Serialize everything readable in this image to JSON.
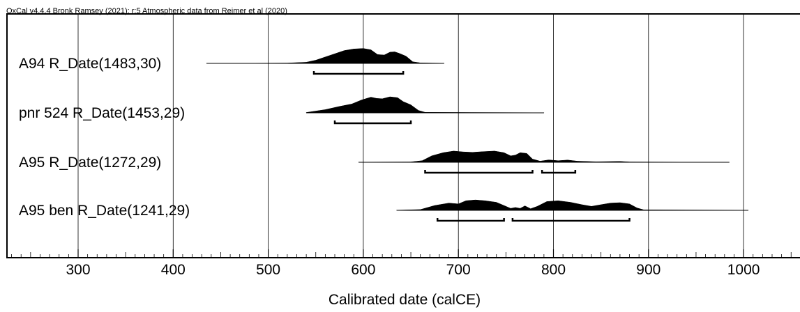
{
  "header": "OxCal v4.4.4 Bronk Ramsey (2021); r:5 Atmospheric data from Reimer et al (2020)",
  "chart_data": {
    "type": "area",
    "xlabel": "Calibrated date (calCE)",
    "xlim": [
      230,
      1090
    ],
    "xticks": [
      300,
      400,
      500,
      600,
      700,
      800,
      900,
      1000
    ],
    "grid": true,
    "samples": [
      {
        "label": "A94 R_Date(1483,30)",
        "range": [
          435,
          685
        ],
        "ranges_95": [
          [
            548,
            642
          ]
        ],
        "density": [
          [
            435,
            0.01
          ],
          [
            480,
            0.01
          ],
          [
            520,
            0.02
          ],
          [
            540,
            0.07
          ],
          [
            550,
            0.2
          ],
          [
            560,
            0.4
          ],
          [
            570,
            0.6
          ],
          [
            580,
            0.8
          ],
          [
            590,
            0.9
          ],
          [
            600,
            0.93
          ],
          [
            608,
            0.85
          ],
          [
            615,
            0.55
          ],
          [
            622,
            0.52
          ],
          [
            628,
            0.7
          ],
          [
            633,
            0.72
          ],
          [
            638,
            0.62
          ],
          [
            645,
            0.45
          ],
          [
            652,
            0.1
          ],
          [
            660,
            0.03
          ],
          [
            685,
            0.01
          ]
        ]
      },
      {
        "label": "pnr 524 R_Date(1453,29)",
        "range": [
          540,
          790
        ],
        "ranges_95": [
          [
            570,
            650
          ]
        ],
        "density": [
          [
            540,
            0.02
          ],
          [
            560,
            0.2
          ],
          [
            575,
            0.4
          ],
          [
            588,
            0.55
          ],
          [
            598,
            0.8
          ],
          [
            608,
            0.98
          ],
          [
            614,
            0.9
          ],
          [
            620,
            0.88
          ],
          [
            628,
            1.0
          ],
          [
            636,
            0.95
          ],
          [
            642,
            0.7
          ],
          [
            650,
            0.5
          ],
          [
            658,
            0.15
          ],
          [
            665,
            0.03
          ],
          [
            790,
            0.01
          ]
        ]
      },
      {
        "label": "A95 R_Date(1272,29)",
        "range": [
          595,
          985
        ],
        "ranges_95": [
          [
            665,
            778
          ],
          [
            788,
            823
          ]
        ],
        "density": [
          [
            595,
            0.01
          ],
          [
            650,
            0.02
          ],
          [
            662,
            0.1
          ],
          [
            672,
            0.4
          ],
          [
            684,
            0.6
          ],
          [
            695,
            0.7
          ],
          [
            705,
            0.65
          ],
          [
            715,
            0.62
          ],
          [
            725,
            0.66
          ],
          [
            738,
            0.7
          ],
          [
            748,
            0.6
          ],
          [
            755,
            0.4
          ],
          [
            760,
            0.45
          ],
          [
            765,
            0.6
          ],
          [
            772,
            0.55
          ],
          [
            778,
            0.2
          ],
          [
            786,
            0.07
          ],
          [
            795,
            0.15
          ],
          [
            805,
            0.1
          ],
          [
            815,
            0.14
          ],
          [
            825,
            0.07
          ],
          [
            845,
            0.03
          ],
          [
            870,
            0.05
          ],
          [
            880,
            0.02
          ],
          [
            985,
            0.0
          ]
        ]
      },
      {
        "label": "A95 ben R_Date(1241,29)",
        "range": [
          635,
          1005
        ],
        "ranges_95": [
          [
            678,
            748
          ],
          [
            757,
            880
          ]
        ],
        "density": [
          [
            635,
            0.01
          ],
          [
            660,
            0.05
          ],
          [
            675,
            0.3
          ],
          [
            690,
            0.45
          ],
          [
            700,
            0.4
          ],
          [
            708,
            0.6
          ],
          [
            718,
            0.65
          ],
          [
            728,
            0.6
          ],
          [
            740,
            0.5
          ],
          [
            748,
            0.3
          ],
          [
            755,
            0.12
          ],
          [
            760,
            0.18
          ],
          [
            765,
            0.12
          ],
          [
            770,
            0.28
          ],
          [
            776,
            0.1
          ],
          [
            783,
            0.25
          ],
          [
            793,
            0.55
          ],
          [
            805,
            0.6
          ],
          [
            818,
            0.5
          ],
          [
            830,
            0.35
          ],
          [
            840,
            0.25
          ],
          [
            850,
            0.35
          ],
          [
            860,
            0.45
          ],
          [
            870,
            0.48
          ],
          [
            880,
            0.4
          ],
          [
            888,
            0.15
          ],
          [
            895,
            0.03
          ],
          [
            1005,
            0.01
          ]
        ]
      }
    ]
  }
}
